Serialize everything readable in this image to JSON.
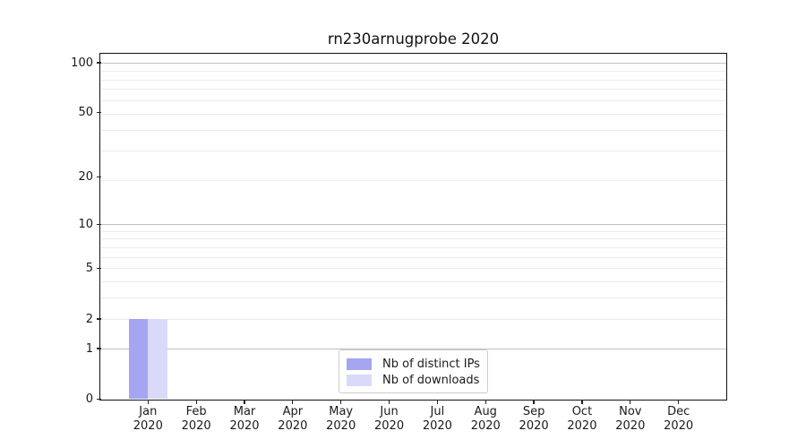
{
  "chart_data": {
    "type": "bar",
    "title": "rn230arnugprobe 2020",
    "categories": [
      "Jan",
      "Feb",
      "Mar",
      "Apr",
      "May",
      "Jun",
      "Jul",
      "Aug",
      "Sep",
      "Oct",
      "Nov",
      "Dec"
    ],
    "year_line": "2020",
    "series": [
      {
        "name": "Nb of distinct IPs",
        "color": "#a5a5f2",
        "values": [
          2,
          0,
          0,
          0,
          0,
          0,
          0,
          0,
          0,
          0,
          0,
          0
        ]
      },
      {
        "name": "Nb of downloads",
        "color": "#d9d9f9",
        "values": [
          2,
          0,
          0,
          0,
          0,
          0,
          0,
          0,
          0,
          0,
          0,
          0
        ]
      }
    ],
    "yscale": "log1p",
    "yticks": [
      0,
      1,
      2,
      5,
      10,
      20,
      50,
      100
    ],
    "ylim": [
      0,
      113
    ],
    "xlabel": "",
    "ylabel": "",
    "grid": "horizontal",
    "legend_position": "lower center",
    "style": {
      "grid_color_major": "#c0c0c0",
      "grid_color_minor": "#ececec",
      "axis_color": "#111111",
      "background": "#ffffff"
    }
  }
}
